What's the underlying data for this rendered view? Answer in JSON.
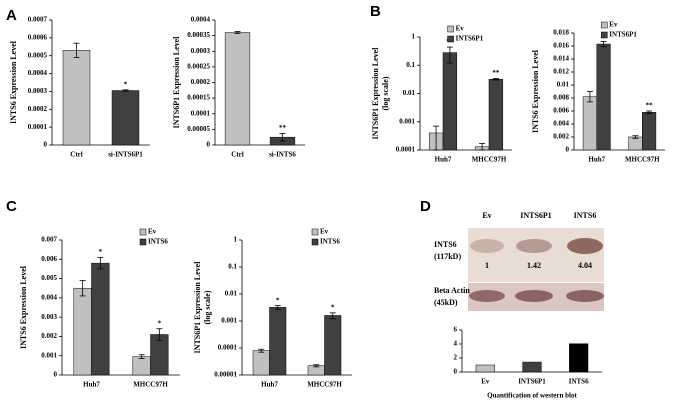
{
  "panel_labels": [
    "A",
    "B",
    "C",
    "D"
  ],
  "blot": {
    "rows": [
      {
        "label": "INTS6",
        "size": "(117kD)"
      },
      {
        "label": "Beta Actin",
        "size": "(45kD)"
      }
    ]
  },
  "chart_data": [
    {
      "type": "bar",
      "y_label": "INTS6 Expression Level",
      "categories": [
        "Ctrl",
        "si-INTS6P1"
      ],
      "values": [
        0.00053,
        0.000305
      ],
      "errors": [
        4e-05,
        4e-06
      ],
      "colors": [
        "#c0c0c0",
        "#404040"
      ],
      "annotations": [
        null,
        "*"
      ],
      "ylim": [
        0,
        0.0007
      ],
      "yticks": [
        0,
        0.0001,
        0.0002,
        0.0003,
        0.0004,
        0.0005,
        0.0006,
        0.0007
      ]
    },
    {
      "type": "bar",
      "y_label": "INTS6P1 Expression Level",
      "categories": [
        "Ctrl",
        "si-INTS6"
      ],
      "values": [
        0.00036,
        2.5e-05
      ],
      "errors": [
        3e-06,
        1.2e-05
      ],
      "colors": [
        "#c0c0c0",
        "#404040"
      ],
      "annotations": [
        null,
        "**"
      ],
      "ylim": [
        0,
        0.0004
      ],
      "yticks": [
        0,
        5e-05,
        0.0001,
        0.00015,
        0.0002,
        0.00025,
        0.0003,
        0.00035,
        0.0004
      ]
    },
    {
      "type": "bar",
      "y_label": "INTS6P1 Expression Level",
      "y_label_note": "(log scale)",
      "log_scale": true,
      "categories": [
        "Huh7",
        "MHCC97H"
      ],
      "legend": "upper left",
      "series": [
        {
          "name": "Ev",
          "color": "#c0c0c0",
          "values": [
            0.0004,
            0.00013
          ],
          "errors": [
            0.0003,
            4e-05
          ],
          "annotations": [
            null,
            null
          ]
        },
        {
          "name": "INTS6P1",
          "color": "#404040",
          "values": [
            0.28,
            0.032
          ],
          "errors": [
            0.16,
            0.002
          ],
          "annotations": [
            "**",
            "**"
          ]
        }
      ],
      "ylim": [
        0.0001,
        1
      ],
      "yticks": [
        0.0001,
        0.001,
        0.01,
        0.1,
        1
      ]
    },
    {
      "type": "bar",
      "y_label": "INTS6 Expression Level",
      "categories": [
        "Huh7",
        "MHCC97H"
      ],
      "legend": "upper left",
      "series": [
        {
          "name": "Ev",
          "color": "#c0c0c0",
          "values": [
            0.0082,
            0.002
          ],
          "errors": [
            0.0008,
            0.0002
          ],
          "annotations": [
            null,
            null
          ]
        },
        {
          "name": "INTS6P1",
          "color": "#404040",
          "values": [
            0.0163,
            0.0058
          ],
          "errors": [
            0.0004,
            0.0002
          ],
          "annotations": [
            "*",
            "**"
          ]
        }
      ],
      "ylim": [
        0,
        0.018
      ],
      "yticks": [
        0,
        0.002,
        0.004,
        0.006,
        0.008,
        0.01,
        0.012,
        0.014,
        0.016,
        0.018
      ]
    },
    {
      "type": "bar",
      "y_label": "INTS6 Expression Level",
      "categories": [
        "Huh7",
        "MHCC97H"
      ],
      "legend": "upper right",
      "series": [
        {
          "name": "Ev",
          "color": "#c0c0c0",
          "values": [
            0.0045,
            0.00095
          ],
          "errors": [
            0.0004,
            0.0001
          ],
          "annotations": [
            null,
            null
          ]
        },
        {
          "name": "INTS6",
          "color": "#404040",
          "values": [
            0.0058,
            0.0021
          ],
          "errors": [
            0.0003,
            0.0003
          ],
          "annotations": [
            "*",
            "*"
          ]
        }
      ],
      "ylim": [
        0,
        0.007
      ],
      "yticks": [
        0,
        0.001,
        0.002,
        0.003,
        0.004,
        0.005,
        0.006,
        0.007
      ]
    },
    {
      "type": "bar",
      "y_label": "INTS6P1 Expression Level",
      "y_label_note": "(log scale)",
      "log_scale": true,
      "categories": [
        "Huh7",
        "MHCC97H"
      ],
      "legend": "upper right",
      "series": [
        {
          "name": "Ev",
          "color": "#c0c0c0",
          "values": [
            8e-05,
            2.2e-05
          ],
          "errors": [
            1e-05,
            2e-06
          ],
          "annotations": [
            null,
            null
          ]
        },
        {
          "name": "INTS6",
          "color": "#404040",
          "values": [
            0.0032,
            0.0016
          ],
          "errors": [
            0.0005,
            0.0004
          ],
          "annotations": [
            "*",
            "*"
          ]
        }
      ],
      "ylim": [
        1e-05,
        1
      ],
      "yticks": [
        1e-05,
        0.0001,
        0.001,
        0.01,
        0.1,
        1
      ]
    },
    {
      "type": "bar",
      "x_label": "Quantification of western blot",
      "categories": [
        "Ev",
        "INTS6P1",
        "INTS6"
      ],
      "values": [
        1,
        1.42,
        4.04
      ],
      "colors": [
        "#c0c0c0",
        "#404040",
        "#000000"
      ],
      "ylim": [
        0,
        6
      ],
      "yticks": [
        0,
        2,
        4,
        6
      ]
    }
  ]
}
